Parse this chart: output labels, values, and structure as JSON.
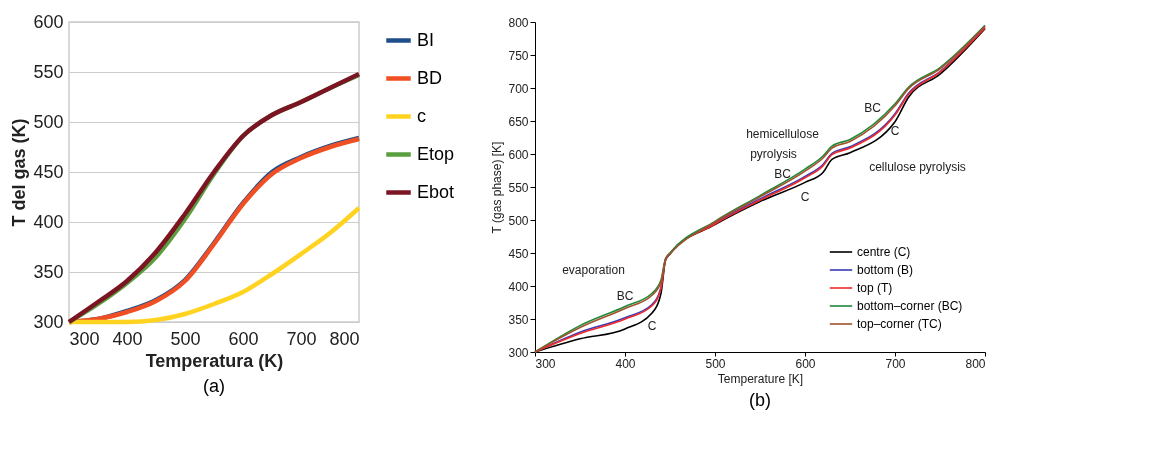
{
  "chart_data": [
    {
      "type": "line",
      "title": "(a)",
      "xlabel": "Temperatura (K)",
      "ylabel": "T del gas (K)",
      "x": [
        300,
        350,
        400,
        450,
        500,
        550,
        600,
        650,
        700,
        750,
        800
      ],
      "series": [
        {
          "name": "BI",
          "color": "#1f4e8c",
          "values": [
            300,
            303,
            311,
            322,
            342,
            379,
            419,
            450,
            465,
            476,
            484
          ]
        },
        {
          "name": "BD",
          "color": "#f04e23",
          "values": [
            300,
            303,
            310,
            321,
            341,
            378,
            418,
            448,
            464,
            475,
            483
          ]
        },
        {
          "name": "c",
          "color": "#ffd320",
          "values": [
            300,
            300,
            300,
            302,
            308,
            318,
            330,
            348,
            368,
            389,
            414
          ]
        },
        {
          "name": "Etop",
          "color": "#5a9e3e",
          "values": [
            300,
            318,
            339,
            365,
            403,
            448,
            486,
            507,
            520,
            534,
            547
          ]
        },
        {
          "name": "Ebot",
          "color": "#7b1523",
          "values": [
            300,
            320,
            341,
            370,
            408,
            450,
            486,
            507,
            520,
            534,
            548
          ]
        }
      ],
      "xlim": [
        300,
        800
      ],
      "xticks": [
        300,
        400,
        500,
        600,
        700,
        800
      ],
      "ylim": [
        300,
        600
      ],
      "yticks": [
        300,
        350,
        400,
        450,
        500,
        550,
        600
      ],
      "grid": "y",
      "legend": "right"
    },
    {
      "type": "line",
      "title": "(b)",
      "xlabel": "Temperature [K]",
      "ylabel": "T (gas phase) [K]",
      "x": [
        300,
        350,
        400,
        430,
        440,
        445,
        450,
        500,
        550,
        600,
        620,
        630,
        650,
        700,
        715,
        750,
        800
      ],
      "series": [
        {
          "name": "centre (C)",
          "color": "#000000",
          "values": [
            300,
            320,
            335,
            359,
            389,
            439,
            449,
            493,
            528,
            557,
            572,
            592,
            602,
            649,
            686,
            721,
            790
          ]
        },
        {
          "name": "bottom (B)",
          "color": "#3a3ab8",
          "values": [
            300,
            330,
            352,
            372,
            398,
            440,
            449,
            495,
            532,
            566,
            584,
            601,
            611,
            661,
            692,
            725,
            792
          ]
        },
        {
          "name": "top (T)",
          "color": "#ee2a2a",
          "values": [
            300,
            328,
            350,
            370,
            396,
            440,
            449,
            494,
            530,
            564,
            582,
            599,
            609,
            659,
            690,
            724,
            791
          ]
        },
        {
          "name": "bottom–corner (BC)",
          "color": "#1f8a3a",
          "values": [
            300,
            340,
            369,
            389,
            409,
            441,
            450,
            498,
            537,
            577,
            597,
            612,
            622,
            676,
            701,
            731,
            795
          ]
        },
        {
          "name": "top–corner (TC)",
          "color": "#a0522d",
          "values": [
            300,
            337,
            366,
            386,
            406,
            441,
            449,
            497,
            535,
            574,
            594,
            609,
            619,
            673,
            699,
            729,
            794
          ]
        }
      ],
      "xlim": [
        300,
        800
      ],
      "xticks": [
        300,
        400,
        500,
        600,
        700,
        800
      ],
      "ylim": [
        300,
        800
      ],
      "yticks": [
        300,
        350,
        400,
        450,
        500,
        550,
        600,
        650,
        700,
        750,
        800
      ],
      "grid": false,
      "legend": "bottom right",
      "annotations": [
        "evaporation",
        "BC",
        "C",
        "hemicellulose",
        "pyrolysis",
        "BC",
        "C",
        "BC",
        "C",
        "cellulose pyrolysis"
      ]
    }
  ]
}
